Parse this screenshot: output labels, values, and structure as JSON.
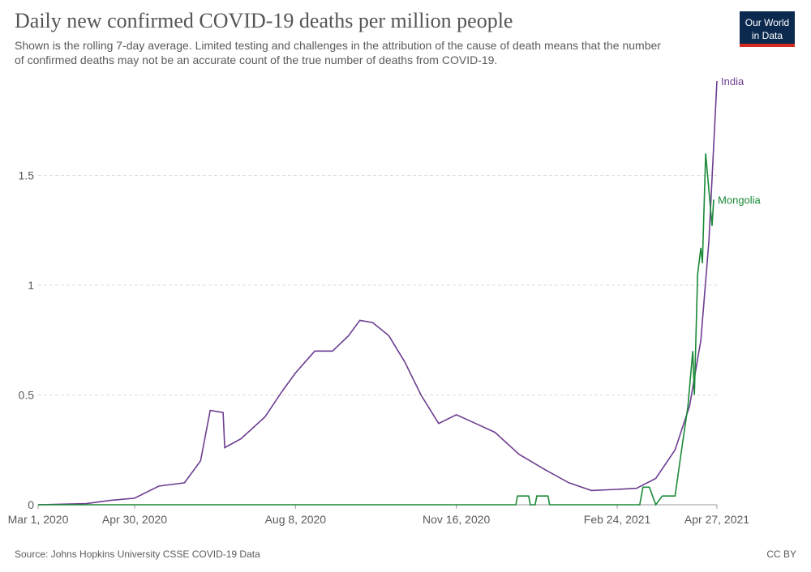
{
  "chart_data": {
    "type": "line",
    "title": "Daily new confirmed COVID-19 deaths per million people",
    "subtitle": [
      "Shown is the rolling 7-day average. Limited testing and challenges in the attribution of the cause of death means that the number",
      "of confirmed deaths may not be an accurate count of the true number of deaths from COVID-19."
    ],
    "source": "Source: Johns Hopkins University CSSE COVID-19 Data",
    "license": "CC BY",
    "logo": [
      "Our World",
      "in Data"
    ],
    "grid": true,
    "xlim": [
      "2020-03-01",
      "2021-04-27"
    ],
    "xticks": [
      {
        "value": "2020-03-01",
        "label": "Mar 1, 2020"
      },
      {
        "value": "2020-04-30",
        "label": "Apr 30, 2020"
      },
      {
        "value": "2020-08-08",
        "label": "Aug 8, 2020"
      },
      {
        "value": "2020-11-16",
        "label": "Nov 16, 2020"
      },
      {
        "value": "2021-02-24",
        "label": "Feb 24, 2021"
      },
      {
        "value": "2021-04-27",
        "label": "Apr 27, 2021"
      }
    ],
    "ylim": [
      0,
      1.93
    ],
    "yticks": [
      0,
      0.5,
      1,
      1.5
    ],
    "series": [
      {
        "name": "India",
        "color": "#6d3e91",
        "x": [
          "2020-03-01",
          "2020-03-31",
          "2020-04-15",
          "2020-04-30",
          "2020-05-15",
          "2020-05-31",
          "2020-06-10",
          "2020-06-16",
          "2020-06-24",
          "2020-06-25",
          "2020-07-05",
          "2020-07-20",
          "2020-07-31",
          "2020-08-08",
          "2020-08-20",
          "2020-08-31",
          "2020-09-10",
          "2020-09-17",
          "2020-09-25",
          "2020-10-05",
          "2020-10-15",
          "2020-10-25",
          "2020-11-05",
          "2020-11-16",
          "2020-11-28",
          "2020-12-10",
          "2020-12-25",
          "2021-01-10",
          "2021-01-25",
          "2021-02-08",
          "2021-02-24",
          "2021-03-08",
          "2021-03-20",
          "2021-04-01",
          "2021-04-10",
          "2021-04-17",
          "2021-04-22",
          "2021-04-27"
        ],
        "values": [
          0,
          0.005,
          0.02,
          0.03,
          0.085,
          0.1,
          0.2,
          0.43,
          0.42,
          0.26,
          0.3,
          0.4,
          0.52,
          0.6,
          0.7,
          0.7,
          0.77,
          0.84,
          0.83,
          0.77,
          0.65,
          0.5,
          0.37,
          0.41,
          0.37,
          0.33,
          0.23,
          0.16,
          0.1,
          0.065,
          0.07,
          0.075,
          0.12,
          0.25,
          0.45,
          0.75,
          1.2,
          1.93
        ]
      },
      {
        "name": "Mongolia",
        "color": "#1a8a38",
        "x": [
          "2020-03-01",
          "2020-12-23",
          "2020-12-24",
          "2020-12-31",
          "2021-01-01",
          "2021-01-04",
          "2021-01-05",
          "2021-01-12",
          "2021-01-13",
          "2021-03-10",
          "2021-03-12",
          "2021-03-16",
          "2021-03-20",
          "2021-03-24",
          "2021-04-01",
          "2021-04-05",
          "2021-04-09",
          "2021-04-12",
          "2021-04-13",
          "2021-04-15",
          "2021-04-17",
          "2021-04-18",
          "2021-04-20",
          "2021-04-24",
          "2021-04-25"
        ],
        "values": [
          0,
          0,
          0.04,
          0.04,
          0,
          0,
          0.04,
          0.04,
          0,
          0,
          0.08,
          0.08,
          0,
          0.04,
          0.04,
          0.25,
          0.45,
          0.7,
          0.5,
          1.05,
          1.17,
          1.1,
          1.6,
          1.27,
          1.39
        ]
      }
    ]
  }
}
